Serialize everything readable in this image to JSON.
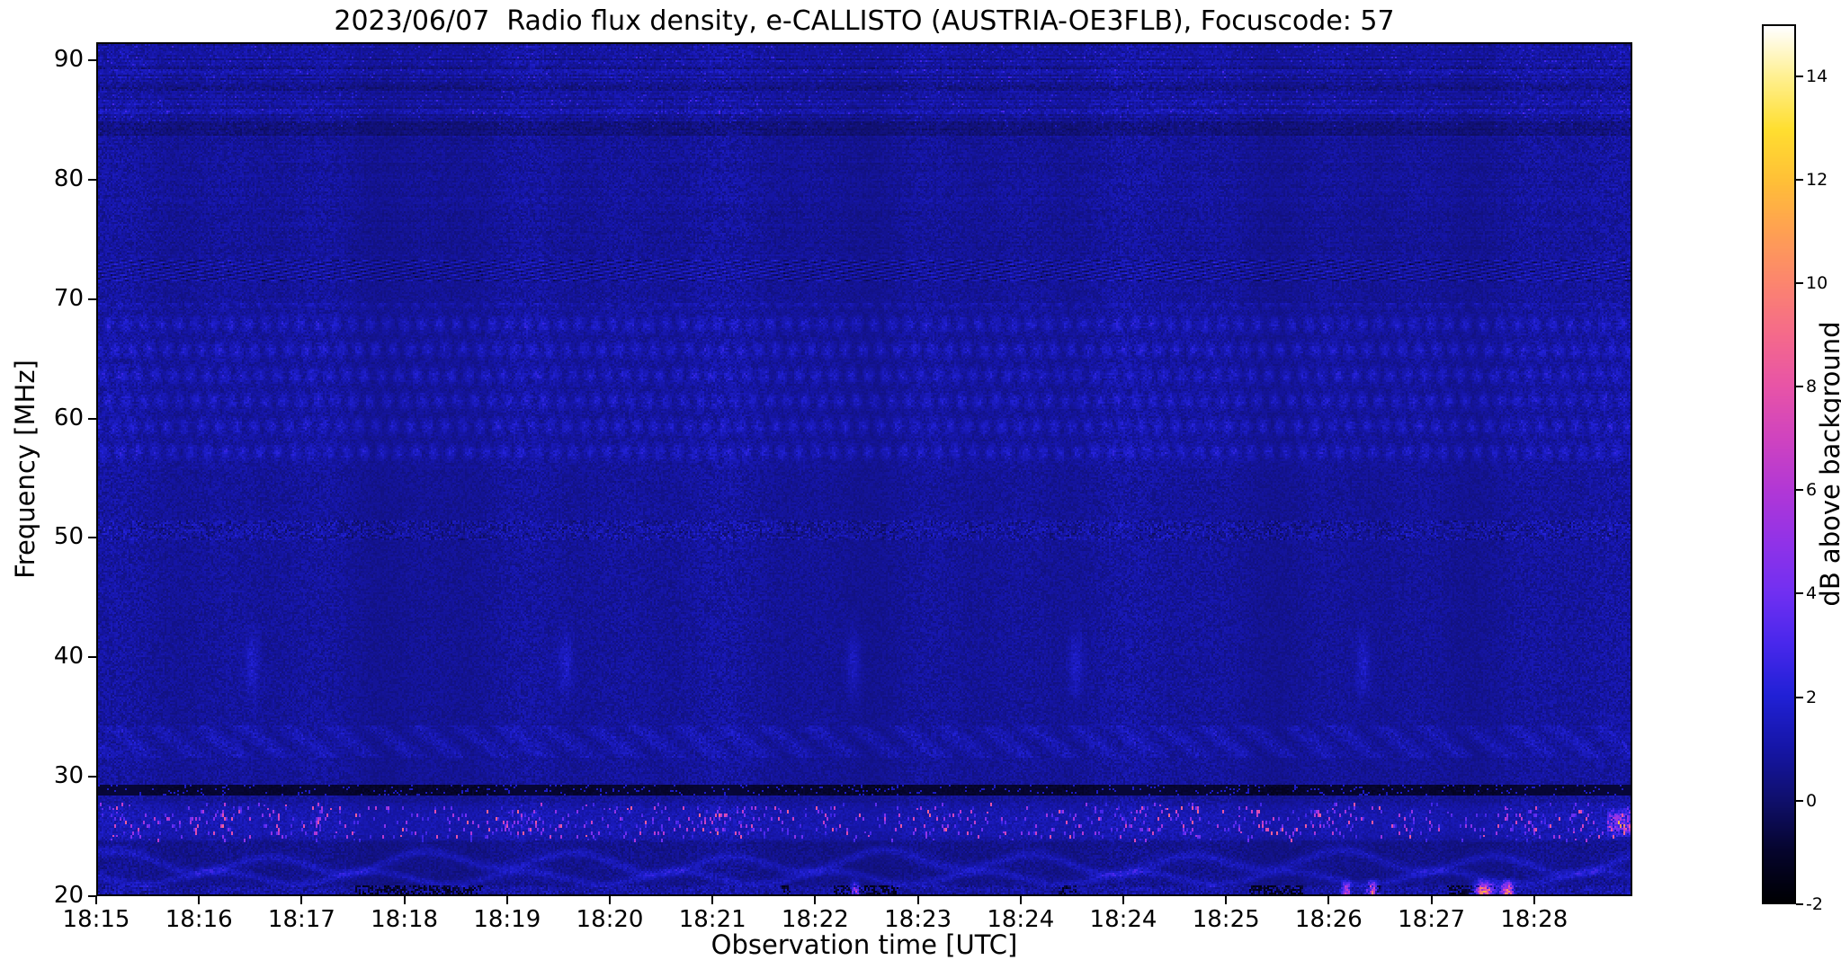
{
  "chart_data": {
    "type": "heatmap",
    "title": "2023/06/07  Radio flux density, e-CALLISTO (AUSTRIA-OE3FLB), Focuscode: 57",
    "date": "2023/06/07",
    "instrument": "e-CALLISTO (AUSTRIA-OE3FLB)",
    "focuscode": "57",
    "xlabel": "Observation time [UTC]",
    "ylabel": "Frequency [MHz]",
    "xticks": [
      "18:15",
      "18:16",
      "18:17",
      "18:18",
      "18:19",
      "18:20",
      "18:21",
      "18:22",
      "18:23",
      "18:24",
      "18:24",
      "18:25",
      "18:26",
      "18:27",
      "18:28"
    ],
    "yticks": [
      90,
      80,
      70,
      60,
      50,
      40,
      30,
      20
    ],
    "ylim": [
      20,
      91.5
    ],
    "time_start": "18:15",
    "duration_minutes": 15,
    "grid": false,
    "legend": "none",
    "colorbar": {
      "label": "dB above background",
      "ticks": [
        14,
        12,
        10,
        8,
        6,
        4,
        2,
        0,
        -2
      ],
      "vmin": -2,
      "vmax": 15,
      "colormap": "gnuplot2-like (black-blue-violet-magenta-salmon-yellow-white)",
      "stops": [
        [
          -2,
          "#000004"
        ],
        [
          -1,
          "#06052e"
        ],
        [
          0,
          "#10106e"
        ],
        [
          1,
          "#1616a8"
        ],
        [
          2,
          "#2121d6"
        ],
        [
          3,
          "#4928ec"
        ],
        [
          4,
          "#7130f2"
        ],
        [
          5,
          "#9233e8"
        ],
        [
          6,
          "#b238d6"
        ],
        [
          7,
          "#d044c0"
        ],
        [
          8,
          "#e854a8"
        ],
        [
          9,
          "#f56a8c"
        ],
        [
          10,
          "#fc8570"
        ],
        [
          11,
          "#ffa054"
        ],
        [
          12,
          "#ffc038"
        ],
        [
          13,
          "#ffdf30"
        ],
        [
          14,
          "#fff08e"
        ],
        [
          15,
          "#ffffff"
        ]
      ]
    },
    "features": {
      "background_level_db": 0.8,
      "high_band": {
        "fmin": 84.6,
        "fmax": 91.5,
        "desc": "striped noisy speckle texture"
      },
      "dark_row_band": {
        "fmin": 83.9,
        "fmax": 85.0
      },
      "diagonal_interference": {
        "fmin": 71.6,
        "fmax": 73.4,
        "desc": "diagonal hatched dark/bright dashes"
      },
      "woven_bands": {
        "fmin": 55.8,
        "fmax": 69.8,
        "f_base": 57.2,
        "row_spacing_mhz": 2.15,
        "cycles": 88,
        "desc": "quasi-periodic bright blue patches in horizontal rows"
      },
      "speckle_band_50mhz": {
        "fmin": 49.7,
        "fmax": 51.4
      },
      "vertical_streaks": {
        "f_center": 39.3,
        "times_frac": [
          0.1,
          0.305,
          0.493,
          0.638,
          0.826
        ],
        "desc": "faint bright vertical streaks near 38-41 MHz"
      },
      "noisy_band_33mhz": {
        "fmin": 31.4,
        "fmax": 34.2
      },
      "dark_line": {
        "fmin": 28.25,
        "fmax": 29.15,
        "level_db": -2,
        "desc": "black dashed horizontal interference line"
      },
      "bright_speckle_band": {
        "fmin": 24.35,
        "fmax": 27.7,
        "f_center": 26.0,
        "max_db": 8,
        "desc": "dense magenta/violet vertical dash speckle"
      },
      "wavy_band": {
        "fmin": 20.6,
        "fmax": 24.4,
        "wave_cycles": 10,
        "desc": "undulating brighter blue wave pattern"
      },
      "bottom_bright_spots": [
        {
          "t": 0.494,
          "db": 6,
          "w": 0.002
        },
        {
          "t": 0.815,
          "db": 8,
          "w": 0.0018
        },
        {
          "t": 0.832,
          "db": 10,
          "w": 0.0022
        },
        {
          "t": 0.905,
          "db": 13,
          "w": 0.0042
        },
        {
          "t": 0.92,
          "db": 11,
          "w": 0.0025
        }
      ],
      "right_edge_blob": {
        "fmin": 24.8,
        "fmax": 27.2,
        "t_start": 0.985,
        "db": 5
      }
    }
  }
}
